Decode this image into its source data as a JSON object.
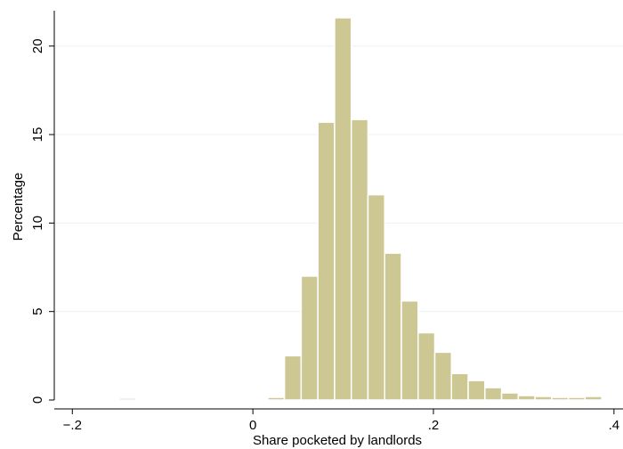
{
  "chart_data": {
    "type": "bar",
    "subtype": "histogram",
    "xlabel": "Share pocketed by landlords",
    "ylabel": "Percentage",
    "xlim": [
      -0.22,
      0.41
    ],
    "ylim": [
      0,
      22
    ],
    "x_ticks": [
      {
        "value": -0.2,
        "label": "−.2"
      },
      {
        "value": 0,
        "label": "0"
      },
      {
        "value": 0.2,
        "label": ".2"
      },
      {
        "value": 0.4,
        "label": ".4"
      }
    ],
    "y_ticks": [
      {
        "value": 0,
        "label": "0"
      },
      {
        "value": 5,
        "label": "5"
      },
      {
        "value": 10,
        "label": "10"
      },
      {
        "value": 15,
        "label": "15"
      },
      {
        "value": 20,
        "label": "20"
      }
    ],
    "grid": "horizontal",
    "bar_fill": "#cdc793",
    "bar_stroke": "#ffffff",
    "bin_width": 0.0185,
    "bins": [
      {
        "x0": -0.148,
        "value": 0.1
      },
      {
        "x0": -0.0305,
        "value": 0.05
      },
      {
        "x0": -0.012,
        "value": 0.05
      },
      {
        "x0": 0.0065,
        "value": 0.05
      },
      {
        "x0": 0.0165,
        "value": 0.15
      },
      {
        "x0": 0.035,
        "value": 2.5
      },
      {
        "x0": 0.0535,
        "value": 7.0
      },
      {
        "x0": 0.072,
        "value": 15.7
      },
      {
        "x0": 0.0905,
        "value": 21.6
      },
      {
        "x0": 0.109,
        "value": 15.85
      },
      {
        "x0": 0.1275,
        "value": 11.6
      },
      {
        "x0": 0.146,
        "value": 8.3
      },
      {
        "x0": 0.1645,
        "value": 5.6
      },
      {
        "x0": 0.183,
        "value": 3.8
      },
      {
        "x0": 0.2015,
        "value": 2.7
      },
      {
        "x0": 0.22,
        "value": 1.5
      },
      {
        "x0": 0.2385,
        "value": 1.1
      },
      {
        "x0": 0.257,
        "value": 0.7
      },
      {
        "x0": 0.2755,
        "value": 0.4
      },
      {
        "x0": 0.294,
        "value": 0.25
      },
      {
        "x0": 0.3125,
        "value": 0.2
      },
      {
        "x0": 0.331,
        "value": 0.15
      },
      {
        "x0": 0.3495,
        "value": 0.15
      },
      {
        "x0": 0.368,
        "value": 0.2
      }
    ]
  }
}
